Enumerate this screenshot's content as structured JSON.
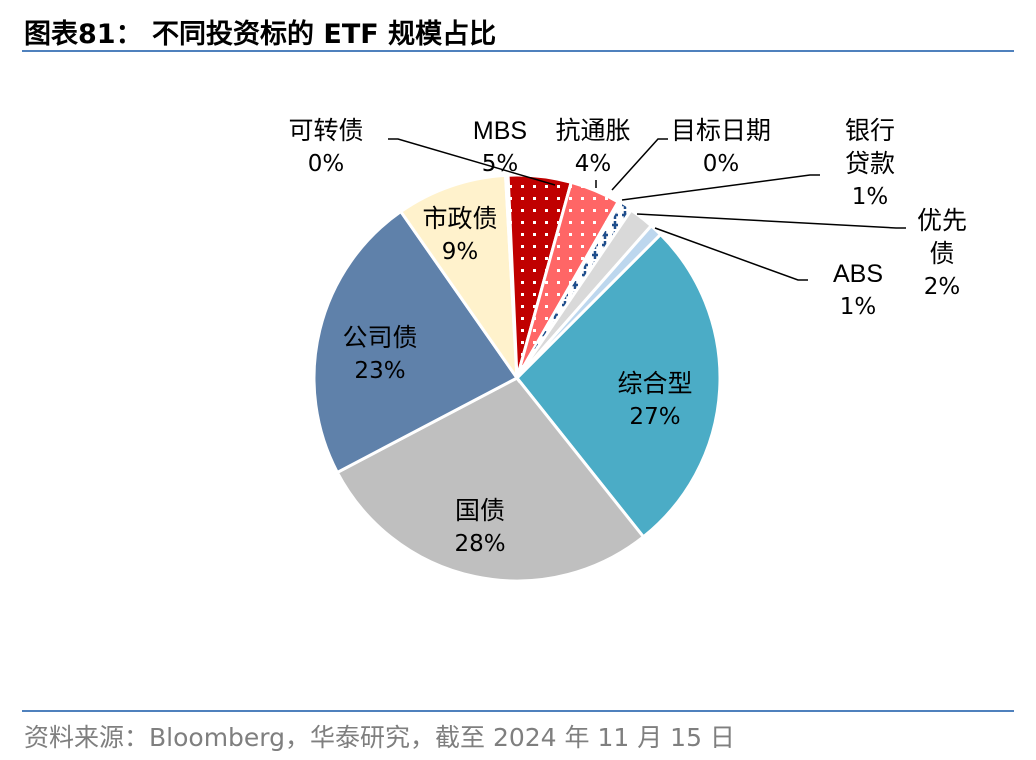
{
  "title": "图表81：  不同投资标的 ETF 规模占比",
  "source": "资料来源：Bloomberg，华泰研究，截至 2024 年 11 月 15 日",
  "chart_data": {
    "type": "pie",
    "title": "不同投资标的 ETF 规模占比",
    "slices": [
      {
        "name": "综合型",
        "label": "27%",
        "value": 26.8,
        "color": "#4BACC6",
        "pattern": "none"
      },
      {
        "name": "国债",
        "label": "28%",
        "value": 28,
        "color": "#BFBFBF",
        "pattern": "none"
      },
      {
        "name": "公司债",
        "label": "23%",
        "value": 23,
        "color": "#5F81AA",
        "pattern": "none"
      },
      {
        "name": "市政债",
        "label": "9%",
        "value": 8.8,
        "color": "#FFF2CC",
        "pattern": "none"
      },
      {
        "name": "可转债",
        "label": "0%",
        "value": 0.2,
        "color": "#DAEEF3",
        "pattern": "none"
      },
      {
        "name": "MBS",
        "label": "5%",
        "value": 5,
        "color": "#C00000",
        "pattern": "dots"
      },
      {
        "name": "抗通胀",
        "label": "4%",
        "value": 4,
        "color": "#FF6666",
        "pattern": "dots"
      },
      {
        "name": "目标日期",
        "label": "0%",
        "value": 0.3,
        "color": "#FFFFFF",
        "pattern": "none"
      },
      {
        "name": "银行贷款",
        "label": "1%",
        "value": 0.9,
        "color": "#FFFFFF",
        "pattern": "crosses"
      },
      {
        "name": "优先债",
        "label": "2%",
        "value": 2,
        "color": "#D9D9D9",
        "pattern": "none"
      },
      {
        "name": "ABS",
        "label": "1%",
        "value": 1,
        "color": "#BDD7EE",
        "pattern": "none"
      }
    ]
  }
}
